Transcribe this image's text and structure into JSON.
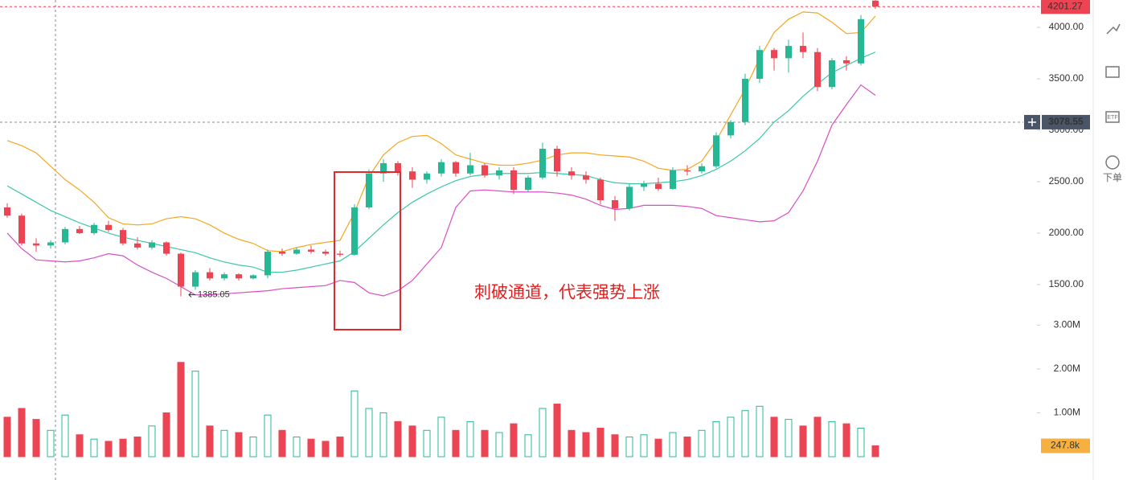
{
  "chart_data": {
    "type": "candlestick",
    "annotation": "刺破通道，代表强势上涨",
    "up_color": "#26b894",
    "down_color": "#ec4452",
    "ylim": [
      1140,
      4266
    ],
    "yticks": [
      {
        "value": 1500,
        "label": "1500.00"
      },
      {
        "value": 2000,
        "label": "2000.00"
      },
      {
        "value": 2500,
        "label": "2500.00"
      },
      {
        "value": 3000,
        "label": "3000.00"
      },
      {
        "value": 3500,
        "label": "3500.00"
      },
      {
        "value": 4000,
        "label": "4000.00"
      }
    ],
    "crosshair": {
      "value": 3078.55,
      "label": "3078.55"
    },
    "open": [
      2250,
      2170,
      1900,
      1880,
      1910,
      2040,
      2000,
      2080,
      2030,
      1900,
      1860,
      1910,
      1800,
      1480,
      1620,
      1560,
      1600,
      1560,
      1590,
      1820,
      1800,
      1840,
      1820,
      1800,
      1790,
      2250,
      2580,
      2680,
      2600,
      2520,
      2580,
      2690,
      2580,
      2660,
      2560,
      2610,
      2420,
      2540,
      2820,
      2600,
      2560,
      2520,
      2320,
      2240,
      2450,
      2480,
      2430,
      2610,
      2600,
      2650,
      2950,
      3080,
      3500,
      3780,
      3700,
      3820,
      3760,
      3420,
      3680,
      3650,
      4260
    ],
    "high": [
      2290,
      2190,
      1950,
      1930,
      2060,
      2070,
      2100,
      2120,
      2050,
      1960,
      1930,
      1920,
      1810,
      1640,
      1660,
      1620,
      1610,
      1600,
      1840,
      1850,
      1860,
      1880,
      1840,
      1830,
      2280,
      2620,
      2720,
      2700,
      2640,
      2600,
      2720,
      2700,
      2780,
      2680,
      2640,
      2640,
      2560,
      2880,
      2850,
      2640,
      2600,
      2540,
      2360,
      2480,
      2510,
      2540,
      2640,
      2660,
      2680,
      2980,
      3100,
      3550,
      3820,
      3800,
      3880,
      3950,
      3800,
      3700,
      3720,
      4120,
      4265
    ],
    "low": [
      2150,
      1880,
      1820,
      1850,
      1890,
      1990,
      1980,
      2010,
      1880,
      1840,
      1840,
      1780,
      1385.05,
      1450,
      1540,
      1540,
      1540,
      1550,
      1560,
      1780,
      1790,
      1800,
      1780,
      1770,
      1780,
      2230,
      2500,
      2560,
      2440,
      2480,
      2550,
      2550,
      2560,
      2540,
      2520,
      2380,
      2400,
      2520,
      2550,
      2520,
      2480,
      2280,
      2120,
      2220,
      2410,
      2410,
      2420,
      2560,
      2580,
      2630,
      2920,
      3050,
      3460,
      3580,
      3560,
      3700,
      3380,
      3400,
      3580,
      3630,
      4180
    ],
    "close": [
      2170,
      1900,
      1880,
      1910,
      2040,
      2000,
      2080,
      2030,
      1900,
      1860,
      1910,
      1800,
      1480,
      1620,
      1560,
      1600,
      1560,
      1590,
      1820,
      1800,
      1840,
      1820,
      1800,
      1790,
      2250,
      2580,
      2680,
      2600,
      2520,
      2580,
      2690,
      2580,
      2660,
      2560,
      2610,
      2420,
      2540,
      2820,
      2600,
      2560,
      2520,
      2320,
      2240,
      2450,
      2480,
      2430,
      2610,
      2600,
      2650,
      2950,
      3080,
      3500,
      3780,
      3700,
      3820,
      3760,
      3420,
      3680,
      3650,
      4080,
      4201.27
    ],
    "close_label": "4201.27",
    "bands": [
      {
        "color": "#f5a623",
        "values": [
          2900,
          2850,
          2780,
          2650,
          2520,
          2420,
          2300,
          2150,
          2090,
          2080,
          2090,
          2140,
          2160,
          2140,
          2080,
          2000,
          1940,
          1900,
          1830,
          1820,
          1860,
          1890,
          1910,
          1930,
          2200,
          2550,
          2760,
          2880,
          2940,
          2950,
          2870,
          2760,
          2720,
          2680,
          2660,
          2660,
          2680,
          2710,
          2760,
          2780,
          2780,
          2760,
          2750,
          2740,
          2700,
          2630,
          2610,
          2620,
          2700,
          2900,
          3150,
          3400,
          3700,
          3950,
          4080,
          4150,
          4140,
          4050,
          3940,
          3950,
          4110
        ]
      },
      {
        "color": "#3cc7a8",
        "values": [
          2460,
          2380,
          2300,
          2220,
          2160,
          2100,
          2050,
          2000,
          1960,
          1930,
          1900,
          1870,
          1840,
          1810,
          1760,
          1720,
          1690,
          1670,
          1620,
          1620,
          1640,
          1670,
          1700,
          1730,
          1820,
          1950,
          2080,
          2200,
          2300,
          2380,
          2450,
          2510,
          2550,
          2570,
          2580,
          2580,
          2580,
          2590,
          2580,
          2570,
          2560,
          2520,
          2490,
          2480,
          2480,
          2490,
          2500,
          2520,
          2560,
          2620,
          2700,
          2800,
          2920,
          3080,
          3190,
          3330,
          3450,
          3560,
          3630,
          3700,
          3760
        ]
      },
      {
        "color": "#d94fc4",
        "values": [
          2000,
          1850,
          1740,
          1730,
          1720,
          1730,
          1760,
          1800,
          1780,
          1690,
          1620,
          1560,
          1480,
          1400,
          1400,
          1410,
          1420,
          1430,
          1440,
          1460,
          1470,
          1480,
          1490,
          1540,
          1520,
          1420,
          1390,
          1440,
          1540,
          1700,
          1860,
          2250,
          2410,
          2420,
          2410,
          2400,
          2400,
          2400,
          2390,
          2370,
          2330,
          2270,
          2230,
          2240,
          2270,
          2270,
          2270,
          2260,
          2240,
          2170,
          2150,
          2130,
          2110,
          2120,
          2200,
          2410,
          2700,
          3050,
          3250,
          3440,
          3340
        ]
      }
    ],
    "volume": [
      900000,
      1100000,
      850000,
      600000,
      950000,
      500000,
      400000,
      350000,
      400000,
      450000,
      700000,
      1000000,
      2150000,
      1950000,
      700000,
      600000,
      550000,
      450000,
      950000,
      600000,
      450000,
      400000,
      350000,
      450000,
      1500000,
      1100000,
      1000000,
      800000,
      700000,
      600000,
      900000,
      600000,
      800000,
      600000,
      550000,
      750000,
      500000,
      1100000,
      1200000,
      600000,
      550000,
      650000,
      500000,
      450000,
      500000,
      400000,
      550000,
      450000,
      600000,
      800000,
      900000,
      1050000,
      1150000,
      900000,
      850000,
      700000,
      900000,
      800000,
      750000,
      650000,
      247800
    ],
    "volume_label": "247.8k",
    "vol_ylim": [
      0,
      3080000
    ],
    "vol_ticks": [
      {
        "value": 1000000,
        "label": "1.00M"
      },
      {
        "value": 2000000,
        "label": "2.00M"
      },
      {
        "value": 3000000,
        "label": "3.00M"
      }
    ]
  },
  "sidebar": {
    "etf": "ETF",
    "order": "下单"
  }
}
